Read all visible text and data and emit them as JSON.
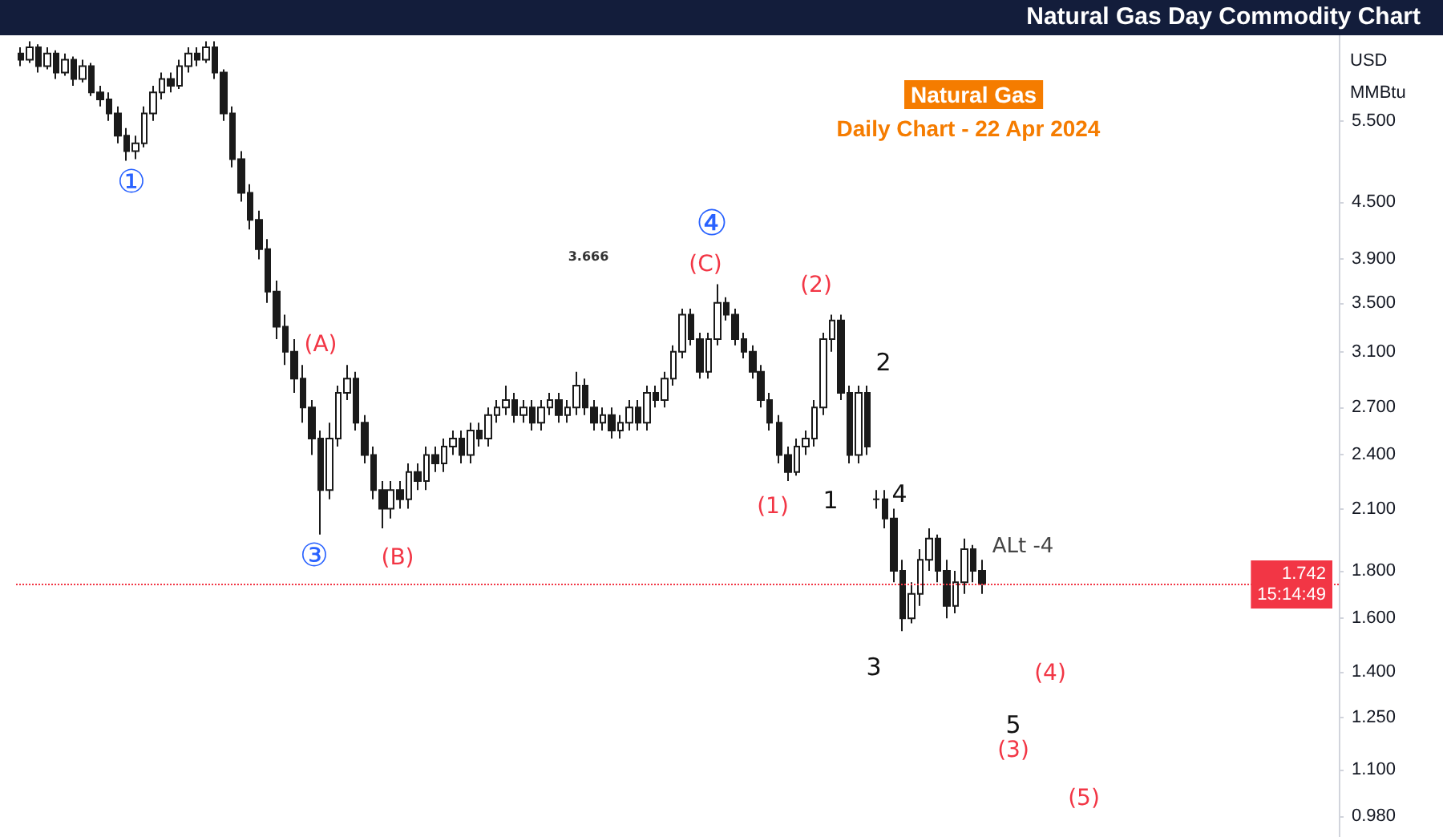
{
  "chart_data": {
    "type": "candlestick",
    "title": "Natural Gas Day Commodity Chart",
    "subtitle": "Daily Chart - 22 Apr 2024",
    "ylabel": "USD\nMMBtu",
    "log": "y",
    "grid": false,
    "tick_labels": "y",
    "color": "#1a1a1a",
    "ylim": [
      0.93,
      6.8
    ],
    "yticks": [
      {
        "value": 0.98,
        "label": "0.980"
      },
      {
        "value": 1.1,
        "label": "1.100"
      },
      {
        "value": 1.25,
        "label": "1.250"
      },
      {
        "value": 1.4,
        "label": "1.400"
      },
      {
        "value": 1.6,
        "label": "1.600"
      },
      {
        "value": 1.8,
        "label": "1.800"
      },
      {
        "value": 2.1,
        "label": "2.100"
      },
      {
        "value": 2.4,
        "label": "2.400"
      },
      {
        "value": 2.7,
        "label": "2.700"
      },
      {
        "value": 3.1,
        "label": "3.100"
      },
      {
        "value": 3.5,
        "label": "3.500"
      },
      {
        "value": 3.9,
        "label": "3.900"
      },
      {
        "value": 4.5,
        "label": "4.500"
      },
      {
        "value": 5.5,
        "label": "5.500"
      }
    ],
    "ref_lines": [
      {
        "axis": "y",
        "value": 1.742,
        "label": "1.742\n15:14:49",
        "color": "#f23645"
      }
    ],
    "annotations": [
      "Natural Gas",
      "①",
      "③",
      "④",
      "(A)",
      "(B)",
      "(C)",
      "(2)",
      "(1)",
      "2",
      "1",
      "4",
      "3",
      "(4)",
      "5",
      "(3)",
      "(5)",
      "3.666",
      "ALt -4"
    ],
    "categories": [
      null,
      null,
      null,
      null,
      null,
      null,
      null,
      null,
      null,
      null,
      null,
      null,
      null,
      null,
      null,
      null,
      null,
      null,
      null,
      null,
      null,
      null,
      null,
      null,
      null,
      null,
      null,
      null,
      null,
      null,
      null,
      null,
      null,
      null,
      null,
      null,
      null,
      null,
      null,
      null,
      null,
      null,
      null,
      null,
      null,
      null,
      null,
      null,
      null,
      null,
      null,
      null,
      null,
      null,
      null,
      null,
      null,
      null,
      null,
      null,
      null,
      null,
      null,
      null,
      null,
      null,
      null,
      null,
      null,
      null,
      null,
      null,
      null,
      null,
      null,
      null,
      null,
      null,
      null,
      null,
      null,
      null,
      null,
      null,
      null,
      null,
      null,
      null,
      null,
      null,
      null,
      null,
      null,
      null,
      null,
      null,
      null,
      null,
      null,
      null,
      null,
      null,
      null,
      null,
      null,
      null,
      null,
      null,
      null,
      null,
      null,
      null,
      null,
      null,
      null,
      null,
      null,
      null,
      null,
      null,
      null,
      null,
      null,
      null,
      null,
      null,
      null,
      null,
      null,
      null,
      null,
      null,
      null,
      null,
      null,
      null,
      null,
      null,
      null,
      null,
      null,
      null,
      null,
      null,
      null,
      null,
      null,
      null,
      null,
      null
    ],
    "ohlc": [
      [
        6.5,
        6.6,
        6.3,
        6.4
      ],
      [
        6.4,
        6.7,
        6.35,
        6.6
      ],
      [
        6.6,
        6.65,
        6.2,
        6.3
      ],
      [
        6.3,
        6.6,
        6.25,
        6.5
      ],
      [
        6.5,
        6.55,
        6.1,
        6.2
      ],
      [
        6.2,
        6.5,
        6.15,
        6.4
      ],
      [
        6.4,
        6.45,
        6.0,
        6.1
      ],
      [
        6.1,
        6.4,
        6.05,
        6.3
      ],
      [
        6.3,
        6.35,
        5.85,
        5.9
      ],
      [
        5.9,
        6.0,
        5.7,
        5.8
      ],
      [
        5.8,
        5.9,
        5.5,
        5.6
      ],
      [
        5.6,
        5.7,
        5.2,
        5.3
      ],
      [
        5.3,
        5.4,
        4.98,
        5.1
      ],
      [
        5.1,
        5.3,
        5.0,
        5.2
      ],
      [
        5.2,
        5.7,
        5.15,
        5.6
      ],
      [
        5.6,
        6.0,
        5.5,
        5.9
      ],
      [
        5.9,
        6.2,
        5.8,
        6.1
      ],
      [
        6.1,
        6.2,
        5.9,
        6.0
      ],
      [
        6.0,
        6.4,
        5.95,
        6.3
      ],
      [
        6.3,
        6.6,
        6.2,
        6.5
      ],
      [
        6.5,
        6.6,
        6.3,
        6.4
      ],
      [
        6.4,
        6.7,
        6.35,
        6.6
      ],
      [
        6.6,
        6.7,
        6.1,
        6.2
      ],
      [
        6.2,
        6.25,
        5.5,
        5.6
      ],
      [
        5.6,
        5.7,
        4.9,
        5.0
      ],
      [
        5.0,
        5.1,
        4.5,
        4.6
      ],
      [
        4.6,
        4.7,
        4.2,
        4.3
      ],
      [
        4.3,
        4.4,
        3.9,
        4.0
      ],
      [
        4.0,
        4.1,
        3.5,
        3.6
      ],
      [
        3.6,
        3.7,
        3.2,
        3.3
      ],
      [
        3.3,
        3.4,
        3.0,
        3.1
      ],
      [
        3.1,
        3.2,
        2.8,
        2.9
      ],
      [
        2.9,
        3.0,
        2.6,
        2.7
      ],
      [
        2.7,
        2.75,
        2.4,
        2.5
      ],
      [
        2.5,
        2.55,
        1.97,
        2.2
      ],
      [
        2.2,
        2.6,
        2.15,
        2.5
      ],
      [
        2.5,
        2.85,
        2.45,
        2.8
      ],
      [
        2.8,
        3.0,
        2.75,
        2.9
      ],
      [
        2.9,
        2.95,
        2.55,
        2.6
      ],
      [
        2.6,
        2.65,
        2.35,
        2.4
      ],
      [
        2.4,
        2.45,
        2.15,
        2.2
      ],
      [
        2.2,
        2.25,
        2.0,
        2.1
      ],
      [
        2.1,
        2.25,
        2.05,
        2.2
      ],
      [
        2.2,
        2.25,
        2.1,
        2.15
      ],
      [
        2.15,
        2.35,
        2.1,
        2.3
      ],
      [
        2.3,
        2.35,
        2.2,
        2.25
      ],
      [
        2.25,
        2.45,
        2.2,
        2.4
      ],
      [
        2.4,
        2.45,
        2.3,
        2.35
      ],
      [
        2.35,
        2.5,
        2.3,
        2.45
      ],
      [
        2.45,
        2.55,
        2.4,
        2.5
      ],
      [
        2.5,
        2.55,
        2.35,
        2.4
      ],
      [
        2.4,
        2.6,
        2.35,
        2.55
      ],
      [
        2.55,
        2.6,
        2.45,
        2.5
      ],
      [
        2.5,
        2.7,
        2.45,
        2.65
      ],
      [
        2.65,
        2.75,
        2.6,
        2.7
      ],
      [
        2.7,
        2.85,
        2.65,
        2.75
      ],
      [
        2.75,
        2.8,
        2.6,
        2.65
      ],
      [
        2.65,
        2.75,
        2.6,
        2.7
      ],
      [
        2.7,
        2.75,
        2.55,
        2.6
      ],
      [
        2.6,
        2.75,
        2.55,
        2.7
      ],
      [
        2.7,
        2.8,
        2.65,
        2.75
      ],
      [
        2.75,
        2.8,
        2.6,
        2.65
      ],
      [
        2.65,
        2.75,
        2.6,
        2.7
      ],
      [
        2.7,
        2.95,
        2.65,
        2.85
      ],
      [
        2.85,
        2.9,
        2.65,
        2.7
      ],
      [
        2.7,
        2.75,
        2.55,
        2.6
      ],
      [
        2.6,
        2.7,
        2.55,
        2.65
      ],
      [
        2.65,
        2.7,
        2.5,
        2.55
      ],
      [
        2.55,
        2.65,
        2.5,
        2.6
      ],
      [
        2.6,
        2.75,
        2.55,
        2.7
      ],
      [
        2.7,
        2.75,
        2.55,
        2.6
      ],
      [
        2.6,
        2.85,
        2.55,
        2.8
      ],
      [
        2.8,
        2.85,
        2.7,
        2.75
      ],
      [
        2.75,
        2.95,
        2.7,
        2.9
      ],
      [
        2.9,
        3.15,
        2.85,
        3.1
      ],
      [
        3.1,
        3.45,
        3.05,
        3.4
      ],
      [
        3.4,
        3.45,
        3.15,
        3.2
      ],
      [
        3.2,
        3.25,
        2.9,
        2.95
      ],
      [
        2.95,
        3.25,
        2.9,
        3.2
      ],
      [
        3.2,
        3.666,
        3.15,
        3.5
      ],
      [
        3.5,
        3.55,
        3.35,
        3.4
      ],
      [
        3.4,
        3.45,
        3.15,
        3.2
      ],
      [
        3.2,
        3.25,
        3.05,
        3.1
      ],
      [
        3.1,
        3.15,
        2.9,
        2.95
      ],
      [
        2.95,
        3.0,
        2.7,
        2.75
      ],
      [
        2.75,
        2.8,
        2.55,
        2.6
      ],
      [
        2.6,
        2.65,
        2.35,
        2.4
      ],
      [
        2.4,
        2.45,
        2.25,
        2.3
      ],
      [
        2.3,
        2.5,
        2.28,
        2.45
      ],
      [
        2.45,
        2.55,
        2.4,
        2.5
      ],
      [
        2.5,
        2.75,
        2.45,
        2.7
      ],
      [
        2.7,
        3.25,
        2.65,
        3.2
      ],
      [
        3.2,
        3.4,
        3.1,
        3.35
      ],
      [
        3.35,
        3.4,
        2.75,
        2.8
      ],
      [
        2.8,
        2.85,
        2.35,
        2.4
      ],
      [
        2.4,
        2.85,
        2.35,
        2.8
      ],
      [
        2.8,
        2.85,
        2.4,
        2.45
      ],
      [
        2.15,
        2.2,
        2.1,
        2.15
      ],
      [
        2.15,
        2.2,
        2.0,
        2.05
      ],
      [
        2.05,
        2.1,
        1.75,
        1.8
      ],
      [
        1.8,
        1.85,
        1.55,
        1.6
      ],
      [
        1.6,
        1.75,
        1.58,
        1.7
      ],
      [
        1.7,
        1.9,
        1.65,
        1.85
      ],
      [
        1.85,
        2.0,
        1.8,
        1.95
      ],
      [
        1.95,
        1.97,
        1.75,
        1.8
      ],
      [
        1.8,
        1.85,
        1.6,
        1.65
      ],
      [
        1.65,
        1.8,
        1.62,
        1.75
      ],
      [
        1.75,
        1.95,
        1.7,
        1.9
      ],
      [
        1.9,
        1.92,
        1.75,
        1.8
      ],
      [
        1.8,
        1.85,
        1.7,
        1.742
      ],
      null,
      null,
      null,
      null,
      null,
      null,
      null,
      null,
      null,
      null,
      null,
      null,
      null,
      null,
      null,
      null,
      null,
      null,
      null,
      null,
      null,
      null,
      null,
      null,
      null,
      null,
      null,
      null,
      null,
      null,
      null,
      null,
      null,
      null,
      null,
      null,
      null,
      null,
      null,
      null
    ]
  }
}
